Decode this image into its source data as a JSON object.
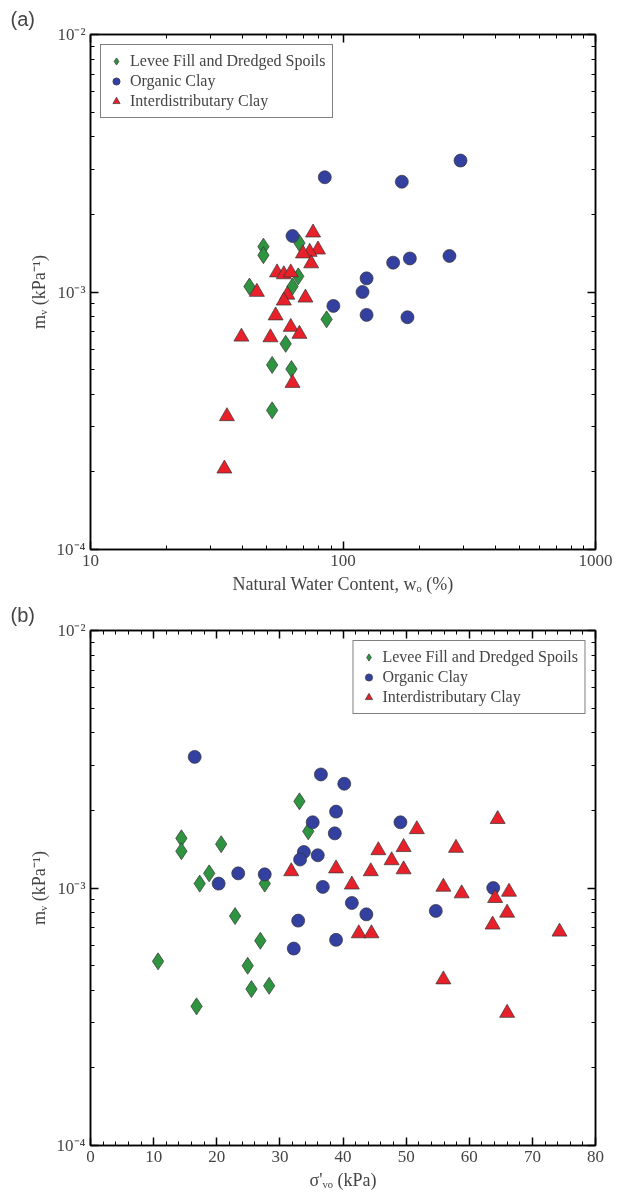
{
  "chart_data": [
    {
      "type": "scatter",
      "title": "(a)",
      "xlabel": "Natural Water Content, wₒ (%)",
      "ylabel": "mᵥ (kPa⁻¹)",
      "log": "xy",
      "grid": false,
      "legend": "top left",
      "xlim": [
        10,
        1000
      ],
      "ylim": [
        0.0001,
        0.01
      ],
      "xticks": [
        10,
        {
          "value": 20,
          "label": null
        },
        {
          "value": 30,
          "label": null
        },
        {
          "value": 40,
          "label": null
        },
        {
          "value": 50,
          "label": null
        },
        {
          "value": 60,
          "label": null
        },
        {
          "value": 70,
          "label": null
        },
        {
          "value": 80,
          "label": null
        },
        {
          "value": 90,
          "label": null
        },
        100,
        {
          "value": 200,
          "label": null
        },
        {
          "value": 300,
          "label": null
        },
        {
          "value": 400,
          "label": null
        },
        {
          "value": 500,
          "label": null
        },
        {
          "value": 600,
          "label": null
        },
        {
          "value": 700,
          "label": null
        },
        {
          "value": 800,
          "label": null
        },
        {
          "value": 900,
          "label": null
        },
        1000
      ],
      "yticks": [
        {
          "value": 0.0001,
          "label": "10⁻⁴"
        },
        {
          "value": 0.0002,
          "label": null
        },
        {
          "value": 0.0003,
          "label": null
        },
        {
          "value": 0.0004,
          "label": null
        },
        {
          "value": 0.0005,
          "label": null
        },
        {
          "value": 0.0006,
          "label": null
        },
        {
          "value": 0.0007,
          "label": null
        },
        {
          "value": 0.0008,
          "label": null
        },
        {
          "value": 0.0009,
          "label": null
        },
        {
          "value": 0.001,
          "label": "10⁻³"
        },
        {
          "value": 0.002,
          "label": null
        },
        {
          "value": 0.003,
          "label": null
        },
        {
          "value": 0.004,
          "label": null
        },
        {
          "value": 0.005,
          "label": null
        },
        {
          "value": 0.006,
          "label": null
        },
        {
          "value": 0.007,
          "label": null
        },
        {
          "value": 0.008,
          "label": null
        },
        {
          "value": 0.009,
          "label": null
        },
        {
          "value": 0.01,
          "label": "10⁻²"
        }
      ],
      "series": [
        {
          "name": "Levee Fill and Dredged Spoils",
          "color": "#2e9440",
          "marker": "diamond",
          "x": [
            48.4,
            48.4,
            67.2,
            42.6,
            66.5,
            63.1,
            86.1,
            59.3,
            52.4,
            62.5,
            52.4
          ],
          "values": [
            0.0015,
            0.00139,
            0.00155,
            0.00105,
            0.00115,
            0.00105,
            0.000783,
            0.000629,
            0.000521,
            0.000502,
            0.000347
          ]
        },
        {
          "name": "Organic Clay",
          "color": "#3340a0",
          "marker": "circle",
          "x": [
            84.7,
            63.1,
            91.6,
            171,
            292,
            158,
            184,
            264,
            124,
            119.5,
            124,
            180
          ],
          "values": [
            0.00279,
            0.00165,
            0.000883,
            0.00268,
            0.00324,
            0.0013,
            0.00135,
            0.00138,
            0.00113,
            0.001,
            0.000815,
            0.000798
          ]
        },
        {
          "name": "Interdistributary Clay",
          "color": "#e8202a",
          "marker": "triangle",
          "x": [
            76.1,
            79.6,
            73.8,
            69.4,
            74.8,
            54.8,
            58.3,
            62.1,
            45.6,
            60.2,
            58.3,
            71,
            54.1,
            62.1,
            67.2,
            39.6,
            51.6,
            63.1,
            34.7,
            33.9
          ],
          "values": [
            0.0017,
            0.00146,
            0.00143,
            0.00141,
            0.00129,
            0.00119,
            0.00117,
            0.00119,
            0.001,
            0.000975,
            0.000925,
            0.00095,
            0.00081,
            0.000731,
            0.000687,
            0.00067,
            0.000666,
            0.000443,
            0.000329,
            0.000206
          ]
        }
      ]
    },
    {
      "type": "scatter",
      "title": "(b)",
      "xlabel": "σ'ᵥₒ (kPa)",
      "ylabel": "mᵥ (kPa⁻¹)",
      "log": "y",
      "grid": false,
      "legend": "top right",
      "xlim": [
        0,
        80
      ],
      "ylim": [
        0.0001,
        0.01
      ],
      "xticks": [
        0,
        {
          "value": 2,
          "label": null
        },
        {
          "value": 4,
          "label": null
        },
        {
          "value": 6,
          "label": null
        },
        {
          "value": 8,
          "label": null
        },
        10,
        {
          "value": 12,
          "label": null
        },
        {
          "value": 14,
          "label": null
        },
        {
          "value": 16,
          "label": null
        },
        {
          "value": 18,
          "label": null
        },
        20,
        {
          "value": 22,
          "label": null
        },
        {
          "value": 24,
          "label": null
        },
        {
          "value": 26,
          "label": null
        },
        {
          "value": 28,
          "label": null
        },
        30,
        {
          "value": 32,
          "label": null
        },
        {
          "value": 34,
          "label": null
        },
        {
          "value": 36,
          "label": null
        },
        {
          "value": 38,
          "label": null
        },
        40,
        {
          "value": 42,
          "label": null
        },
        {
          "value": 44,
          "label": null
        },
        {
          "value": 46,
          "label": null
        },
        {
          "value": 48,
          "label": null
        },
        50,
        {
          "value": 52,
          "label": null
        },
        {
          "value": 54,
          "label": null
        },
        {
          "value": 56,
          "label": null
        },
        {
          "value": 58,
          "label": null
        },
        60,
        {
          "value": 62,
          "label": null
        },
        {
          "value": 64,
          "label": null
        },
        {
          "value": 66,
          "label": null
        },
        {
          "value": 68,
          "label": null
        },
        70,
        {
          "value": 72,
          "label": null
        },
        {
          "value": 74,
          "label": null
        },
        {
          "value": 76,
          "label": null
        },
        {
          "value": 78,
          "label": null
        },
        80
      ],
      "yticks": [
        {
          "value": 0.0001,
          "label": "10⁻⁴"
        },
        {
          "value": 0.0002,
          "label": null
        },
        {
          "value": 0.0003,
          "label": null
        },
        {
          "value": 0.0004,
          "label": null
        },
        {
          "value": 0.0005,
          "label": null
        },
        {
          "value": 0.0006,
          "label": null
        },
        {
          "value": 0.0007,
          "label": null
        },
        {
          "value": 0.0008,
          "label": null
        },
        {
          "value": 0.0009,
          "label": null
        },
        {
          "value": 0.001,
          "label": "10⁻³"
        },
        {
          "value": 0.002,
          "label": null
        },
        {
          "value": 0.003,
          "label": null
        },
        {
          "value": 0.004,
          "label": null
        },
        {
          "value": 0.005,
          "label": null
        },
        {
          "value": 0.006,
          "label": null
        },
        {
          "value": 0.007,
          "label": null
        },
        {
          "value": 0.008,
          "label": null
        },
        {
          "value": 0.009,
          "label": null
        },
        {
          "value": 0.01,
          "label": "10⁻²"
        }
      ],
      "series": [
        {
          "name": "Levee Fill and Dredged Spoils",
          "color": "#2e9440",
          "marker": "diamond",
          "x": [
            33.1,
            34.5,
            14.4,
            14.4,
            20.7,
            18.8,
            17.3,
            27.6,
            22.9,
            26.9,
            10.7,
            24.9,
            25.5,
            28.3,
            16.8
          ],
          "values": [
            0.00217,
            0.00166,
            0.00156,
            0.00139,
            0.00148,
            0.00114,
            0.00104,
            0.00104,
            0.000778,
            0.000624,
            0.000519,
            0.000499,
            0.000405,
            0.000417,
            0.000347
          ]
        },
        {
          "name": "Organic Clay",
          "color": "#3340a0",
          "marker": "circle",
          "x": [
            16.5,
            36.5,
            40.2,
            38.9,
            35.2,
            38.7,
            33.8,
            33.2,
            36.0,
            23.4,
            27.6,
            20.3,
            36.8,
            32.9,
            38.9,
            32.2,
            49.1,
            41.4,
            43.7,
            54.7,
            63.8
          ],
          "values": [
            0.00323,
            0.00276,
            0.00254,
            0.00198,
            0.0018,
            0.00163,
            0.00138,
            0.00129,
            0.00134,
            0.00114,
            0.00113,
            0.00104,
            0.00101,
            0.000747,
            0.000629,
            0.000582,
            0.0018,
            0.000875,
            0.00079,
            0.000815,
            0.001
          ]
        },
        {
          "name": "Interdistributary Clay",
          "color": "#e8202a",
          "marker": "triangle",
          "x": [
            31.8,
            38.9,
            64.5,
            51.7,
            45.6,
            49.6,
            57.9,
            47.7,
            49.6,
            44.4,
            41.4,
            55.9,
            58.8,
            66.3,
            64.1,
            66.0,
            63.7,
            74.3,
            42.5,
            44.5,
            55.9,
            66.0
          ],
          "values": [
            0.00116,
            0.00119,
            0.00185,
            0.00169,
            0.0014,
            0.00144,
            0.00143,
            0.00128,
            0.00118,
            0.00116,
            0.00103,
            0.00101,
            0.000952,
            0.000966,
            0.000913,
            0.000801,
            0.00072,
            0.000676,
            0.000666,
            0.000666,
            0.000441,
            0.000327
          ]
        }
      ]
    }
  ]
}
